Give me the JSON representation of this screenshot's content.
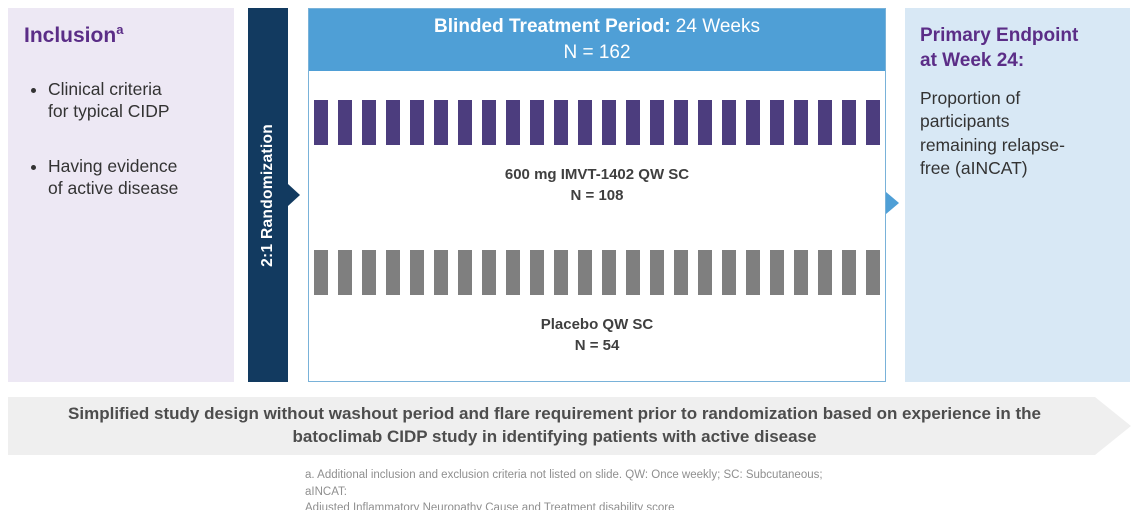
{
  "left_panel": {
    "heading": "Inclusion",
    "heading_superscript": "a",
    "bullets": [
      "Clinical criteria\nfor typical CIDP",
      "Having evidence\nof active disease"
    ]
  },
  "randomization_bar": {
    "label": "2:1 Randomization"
  },
  "treatment_box": {
    "header_bold": "Blinded Treatment Period:",
    "header_rest": " 24 Weeks",
    "header_n": "N = 162",
    "arms": [
      {
        "name": "600 mg IMVT-1402 QW SC",
        "n_label": "N = 108",
        "tick_count": 24,
        "tick_color": "#4C3D7E"
      },
      {
        "name": "Placebo QW SC",
        "n_label": "N = 54",
        "tick_count": 24,
        "tick_color": "#7F7F7F"
      }
    ]
  },
  "right_panel": {
    "heading": "Primary Endpoint\nat Week 24:",
    "body": "Proportion of\nparticipants\nremaining relapse-\nfree (aINCAT)"
  },
  "banner": {
    "line1": "Simplified study design without washout period and flare requirement prior to randomization based on the experience in the",
    "line1_exact": "Simplified study design without washout period and flare requirement prior to randomization based on experience in the",
    "line2": "batoclimab CIDP study in identifying patients with active disease"
  },
  "footnote": {
    "line1": "a. Additional inclusion and exclusion criteria not listed on slide. QW: Once weekly; SC: Subcutaneous; aINCAT:",
    "line2": "Adjusted Inflammatory Neuropathy Cause and Treatment disability score"
  },
  "colors": {
    "left_panel_bg": "#EDE8F4",
    "right_panel_bg": "#D8E8F5",
    "randomization_bar_bg": "#123A60",
    "header_blue": "#4F9FD6",
    "box_border_blue": "#79B2D9",
    "heading_purple": "#5B2D87",
    "treatment_tick_purple": "#4C3D7E",
    "placebo_tick_gray": "#7F7F7F",
    "banner_bg": "#EFEFEF"
  }
}
